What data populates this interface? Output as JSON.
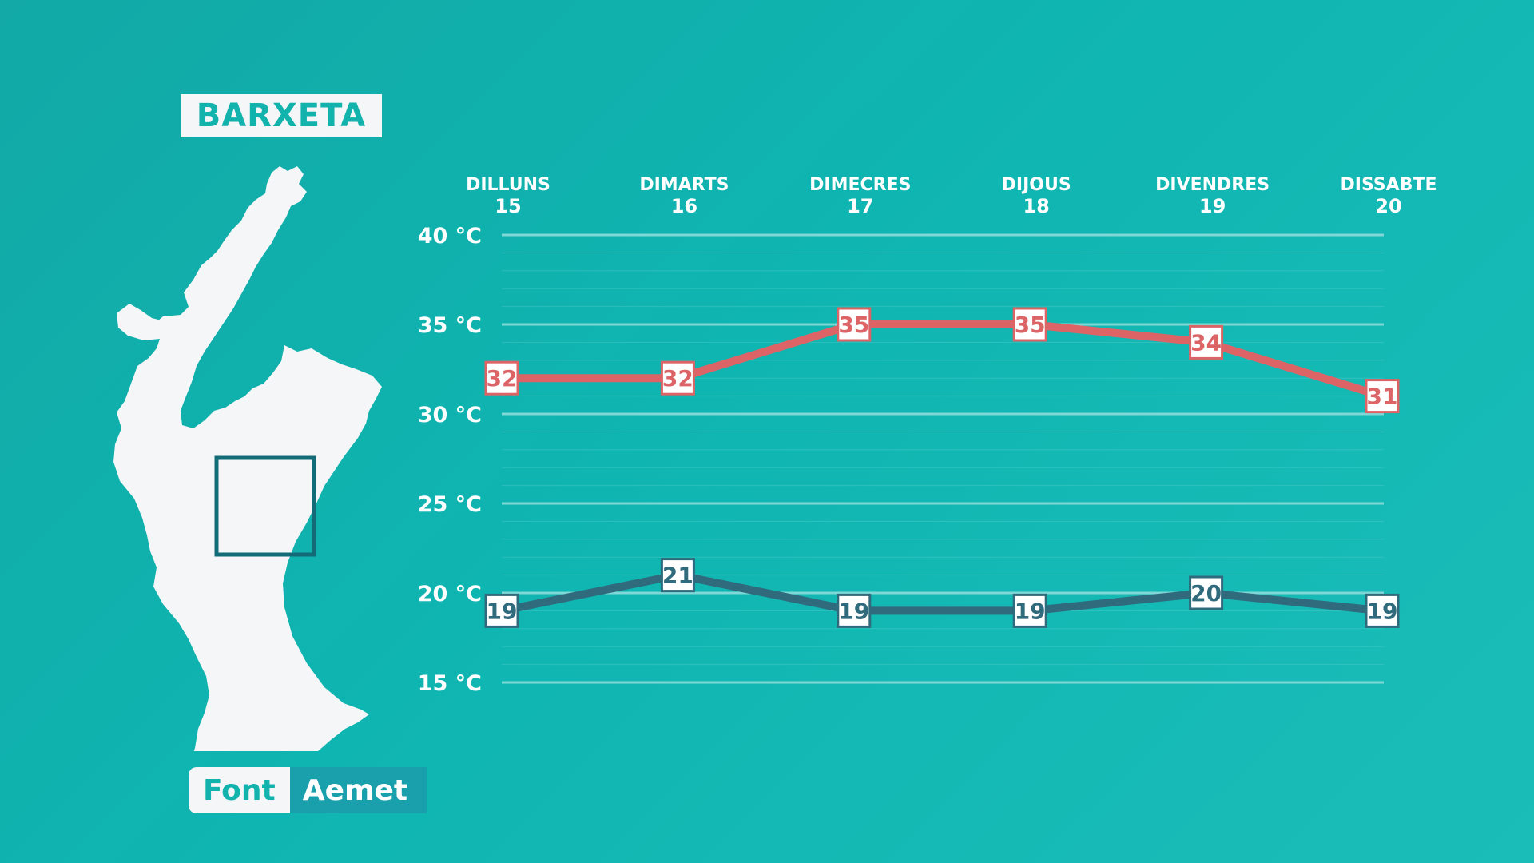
{
  "title": "BARXETA",
  "source": {
    "label": "Font",
    "value": "Aemet"
  },
  "colors": {
    "max": "#dd6466",
    "min": "#2f6a7d",
    "grid": "#7fd8d6",
    "map": "#f4f6f8",
    "highlight": "#146b78"
  },
  "icons": {
    "map": "region-map-icon"
  },
  "chart_data": {
    "type": "line",
    "categories": [
      {
        "day": "DILLUNS",
        "date": "15"
      },
      {
        "day": "DIMARTS",
        "date": "16"
      },
      {
        "day": "DIMECRES",
        "date": "17"
      },
      {
        "day": "DIJOUS",
        "date": "18"
      },
      {
        "day": "DIVENDRES",
        "date": "19"
      },
      {
        "day": "DISSABTE",
        "date": "20"
      }
    ],
    "yticks": [
      {
        "value": 40,
        "label": "40 °C"
      },
      {
        "value": 35,
        "label": "35 °C"
      },
      {
        "value": 30,
        "label": "30 °C"
      },
      {
        "value": 25,
        "label": "25 °C"
      },
      {
        "value": 20,
        "label": "20 °C"
      },
      {
        "value": 15,
        "label": "15 °C"
      }
    ],
    "ylim": [
      15,
      40
    ],
    "grid": true,
    "series": [
      {
        "key": "max",
        "values": [
          32,
          32,
          35,
          35,
          34,
          31
        ]
      },
      {
        "key": "min",
        "values": [
          19,
          21,
          19,
          19,
          20,
          19
        ]
      }
    ]
  }
}
